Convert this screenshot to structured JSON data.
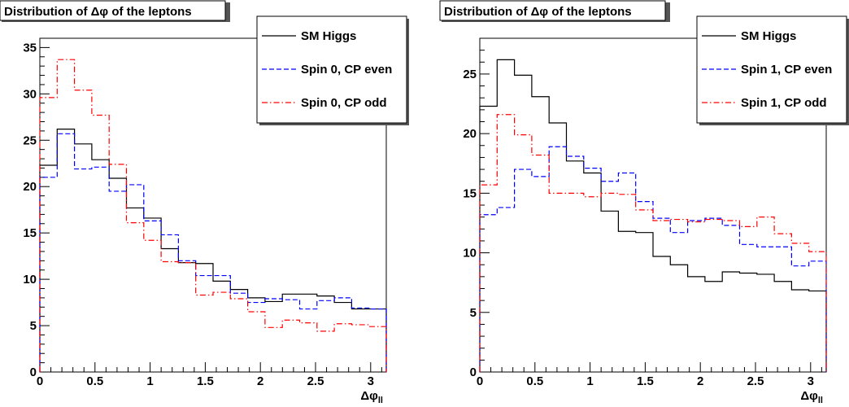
{
  "chart_data": [
    {
      "type": "line",
      "title": "Distribution of Δφ of the leptons",
      "xlabel": "Δφ",
      "xlabel_sub": "ll",
      "ylabel": "",
      "xlim": [
        0,
        3.1416
      ],
      "ylim": [
        0,
        36
      ],
      "xticks": [
        "0",
        "0.5",
        "1",
        "1.5",
        "2",
        "2.5",
        "3"
      ],
      "yticks": [
        "0",
        "5",
        "10",
        "15",
        "20",
        "25",
        "30",
        "35"
      ],
      "bin_edges": [
        0,
        0.1571,
        0.3142,
        0.4712,
        0.6283,
        0.7854,
        0.9425,
        1.0996,
        1.2566,
        1.4137,
        1.5708,
        1.7279,
        1.885,
        2.042,
        2.1991,
        2.3562,
        2.5133,
        2.6704,
        2.8274,
        2.9845,
        3.1416
      ],
      "legend_position": "top-right",
      "series": [
        {
          "name": "SM Higgs",
          "color": "#000000",
          "style": "solid",
          "values": [
            22.3,
            26.2,
            24.6,
            22.9,
            20.9,
            17.7,
            16.6,
            13.3,
            11.8,
            11.7,
            9.8,
            8.9,
            8.0,
            7.6,
            8.4,
            8.4,
            8.2,
            7.5,
            6.8,
            6.8
          ]
        },
        {
          "name": "Spin 0, CP even",
          "color": "#0000ff",
          "style": "dashed",
          "values": [
            21.0,
            25.7,
            21.9,
            22.1,
            19.5,
            20.2,
            16.3,
            14.8,
            12.0,
            10.4,
            10.4,
            8.5,
            7.5,
            7.9,
            7.8,
            6.8,
            7.7,
            8.0,
            6.9,
            6.8
          ]
        },
        {
          "name": "Spin 0, CP odd",
          "color": "#ff0000",
          "style": "dashdot",
          "values": [
            29.6,
            33.7,
            30.4,
            27.7,
            22.4,
            16.1,
            14.2,
            11.9,
            11.8,
            8.3,
            8.6,
            7.9,
            6.5,
            4.8,
            5.6,
            5.3,
            4.4,
            5.2,
            5.1,
            4.9
          ]
        }
      ]
    },
    {
      "type": "line",
      "title": "Distribution of Δφ of the leptons",
      "xlabel": "Δφ",
      "xlabel_sub": "ll",
      "ylabel": "",
      "xlim": [
        0,
        3.1416
      ],
      "ylim": [
        0,
        28
      ],
      "xticks": [
        "0",
        "0.5",
        "1",
        "1.5",
        "2",
        "2.5",
        "3"
      ],
      "yticks": [
        "0",
        "5",
        "10",
        "15",
        "20",
        "25"
      ],
      "bin_edges": [
        0,
        0.1571,
        0.3142,
        0.4712,
        0.6283,
        0.7854,
        0.9425,
        1.0996,
        1.2566,
        1.4137,
        1.5708,
        1.7279,
        1.885,
        2.042,
        2.1991,
        2.3562,
        2.5133,
        2.6704,
        2.8274,
        2.9845,
        3.1416
      ],
      "legend_position": "top-right",
      "series": [
        {
          "name": "SM Higgs",
          "color": "#000000",
          "style": "solid",
          "values": [
            22.3,
            26.2,
            24.9,
            23.1,
            20.9,
            17.7,
            16.7,
            13.5,
            11.8,
            11.7,
            9.7,
            9.0,
            8.0,
            7.6,
            8.4,
            8.3,
            8.2,
            7.6,
            6.9,
            6.8
          ]
        },
        {
          "name": "Spin 1, CP even",
          "color": "#0000ff",
          "style": "dashed",
          "values": [
            13.2,
            13.8,
            17.0,
            16.4,
            18.9,
            18.1,
            17.1,
            16.0,
            16.7,
            14.3,
            12.9,
            11.7,
            12.7,
            12.9,
            12.3,
            10.7,
            10.5,
            10.5,
            8.9,
            9.3
          ]
        },
        {
          "name": "Spin 1, CP odd",
          "color": "#ff0000",
          "style": "dashdot",
          "values": [
            15.7,
            21.6,
            19.9,
            18.2,
            15.0,
            15.0,
            14.7,
            15.0,
            14.9,
            13.6,
            12.7,
            12.8,
            12.6,
            12.8,
            12.7,
            12.2,
            13.0,
            11.6,
            10.8,
            10.1
          ]
        }
      ]
    }
  ]
}
